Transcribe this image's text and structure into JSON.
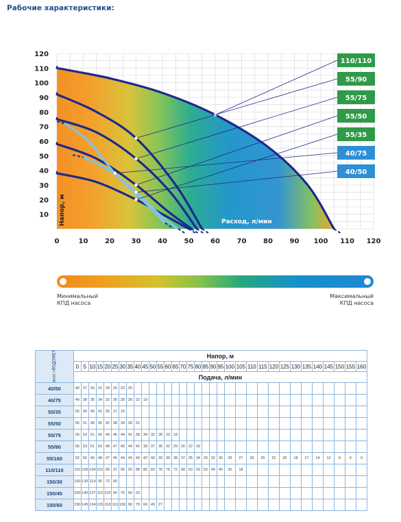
{
  "page": {
    "section_title": "Рабочие характеристики:"
  },
  "chart_data": {
    "type": "line",
    "title": "",
    "xlabel": "Расход, л/мин",
    "ylabel": "Напор, м",
    "xlim": [
      0,
      120
    ],
    "ylim": [
      0,
      120
    ],
    "x_ticks": [
      0,
      10,
      20,
      30,
      40,
      50,
      60,
      70,
      80,
      90,
      100,
      110,
      120
    ],
    "y_ticks": [
      10,
      20,
      30,
      40,
      50,
      60,
      70,
      80,
      90,
      100,
      110,
      120
    ],
    "grid": true,
    "efficiency_legend": {
      "min_label": [
        "Минимальный",
        "КПД насоса"
      ],
      "max_label": [
        "Максимальный",
        "КПД насоса"
      ]
    },
    "series": [
      {
        "name": "110/110",
        "color": "#2f9a47",
        "points": [
          [
            0,
            110
          ],
          [
            20,
            103
          ],
          [
            40,
            93
          ],
          [
            60,
            78
          ],
          [
            80,
            56
          ],
          [
            95,
            30
          ],
          [
            105,
            0
          ]
        ]
      },
      {
        "name": "55/90",
        "color": "#2f9a47",
        "points": [
          [
            0,
            92
          ],
          [
            15,
            80
          ],
          [
            30,
            62
          ],
          [
            45,
            30
          ],
          [
            55,
            0
          ]
        ]
      },
      {
        "name": "55/75",
        "color": "#2f9a47",
        "points": [
          [
            0,
            75
          ],
          [
            15,
            66
          ],
          [
            30,
            48
          ],
          [
            43,
            25
          ],
          [
            53,
            0
          ]
        ]
      },
      {
        "name": "55/50",
        "color": "#2f9a47",
        "points": [
          [
            0,
            58
          ],
          [
            15,
            48
          ],
          [
            30,
            30
          ],
          [
            42,
            12
          ],
          [
            51,
            0
          ]
        ]
      },
      {
        "name": "55/35",
        "color": "#2f9a47",
        "points": [
          [
            0,
            38
          ],
          [
            15,
            32
          ],
          [
            30,
            20
          ],
          [
            40,
            10
          ],
          [
            50,
            0
          ]
        ]
      },
      {
        "name": "40/75",
        "color": "#2f8fd6",
        "points": [
          [
            3,
            72
          ],
          [
            12,
            60
          ],
          [
            22,
            38
          ],
          [
            35,
            15
          ],
          [
            41,
            4
          ]
        ]
      },
      {
        "name": "40/50",
        "color": "#2f8fd6",
        "points": [
          [
            10,
            49
          ],
          [
            20,
            40
          ],
          [
            30,
            25
          ],
          [
            40,
            8
          ],
          [
            46,
            0
          ]
        ]
      }
    ]
  },
  "table": {
    "corner_label": "Насос «ВОДОМЕТ»",
    "head_title": "Напор, м",
    "flow_title": "Подача, л/мин",
    "heads": [
      "0",
      "5",
      "10",
      "15",
      "20",
      "25",
      "30",
      "35",
      "40",
      "45",
      "50",
      "55",
      "60",
      "65",
      "70",
      "75",
      "80",
      "85",
      "90",
      "95",
      "100",
      "105",
      "110",
      "115",
      "120",
      "125",
      "130",
      "135",
      "140",
      "145",
      "150",
      "155",
      "160"
    ],
    "rows": [
      {
        "model": "40/50",
        "values": [
          "40",
          "37",
          "33",
          "31",
          "28",
          "26",
          "23",
          "20"
        ]
      },
      {
        "model": "40/75",
        "values": [
          "40",
          "38",
          "35",
          "34",
          "32",
          "30",
          "28",
          "26",
          "22",
          "19"
        ]
      },
      {
        "model": "55/35",
        "values": [
          "55",
          "49",
          "45",
          "41",
          "35",
          "27",
          "19"
        ]
      },
      {
        "model": "55/50",
        "values": [
          "55",
          "51",
          "49",
          "45",
          "42",
          "38",
          "34",
          "28",
          "21"
        ]
      },
      {
        "model": "55/75",
        "values": [
          "55",
          "53",
          "51",
          "50",
          "49",
          "46",
          "44",
          "41",
          "38",
          "34",
          "32",
          "28",
          "23",
          "18"
        ]
      },
      {
        "model": "55/90",
        "values": [
          "55",
          "53",
          "51",
          "50",
          "48",
          "47",
          "45",
          "44",
          "42",
          "39",
          "37",
          "35",
          "32",
          "29",
          "26",
          "22",
          "18"
        ]
      },
      {
        "model": "55/160",
        "values": [
          "52",
          "50",
          "49",
          "48",
          "47",
          "45",
          "44",
          "43",
          "43",
          "42",
          "40",
          "39",
          "39",
          "38",
          "37",
          "35",
          "34",
          "33",
          "32",
          "30",
          "29",
          "27",
          "26",
          "25",
          "22",
          "20",
          "18",
          "17",
          "14",
          "12",
          "8",
          "5",
          "0"
        ]
      },
      {
        "model": "110/110",
        "values": [
          "110",
          "106",
          "104",
          "101",
          "99",
          "97",
          "95",
          "92",
          "88",
          "85",
          "83",
          "78",
          "75",
          "72",
          "68",
          "63",
          "59",
          "53",
          "49",
          "40",
          "32",
          "18"
        ]
      },
      {
        "model": "150/30",
        "values": [
          "150",
          "135",
          "114",
          "95",
          "72",
          "40"
        ]
      },
      {
        "model": "150/45",
        "values": [
          "150",
          "140",
          "127",
          "115",
          "103",
          "90",
          "76",
          "60",
          "29"
        ]
      },
      {
        "model": "150/60",
        "values": [
          "150",
          "145",
          "134",
          "126",
          "118",
          "110",
          "100",
          "90",
          "79",
          "66",
          "49",
          "27"
        ]
      }
    ]
  }
}
